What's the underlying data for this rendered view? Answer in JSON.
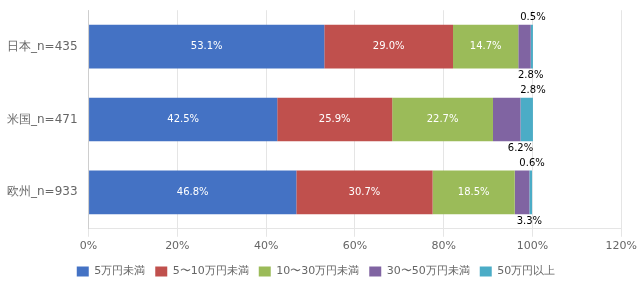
{
  "chart_data": {
    "type": "bar",
    "orientation": "horizontal",
    "stacked": true,
    "categories": [
      "日本_n=435",
      "米国_n=471",
      "欧州_n=933"
    ],
    "series": [
      {
        "name": "5万円未満",
        "color": "#4472C4",
        "values": [
          53.1,
          42.5,
          46.8
        ],
        "value_labels": [
          "53.1%",
          "42.5%",
          "46.8%"
        ]
      },
      {
        "name": "5〜10万円未満",
        "color": "#C0504D",
        "values": [
          29.0,
          25.9,
          30.7
        ],
        "value_labels": [
          "29.0%",
          "25.9%",
          "30.7%"
        ]
      },
      {
        "name": "10〜30万円未満",
        "color": "#9BBB59",
        "values": [
          14.7,
          22.7,
          18.5
        ],
        "value_labels": [
          "14.7%",
          "22.7%",
          "18.5%"
        ]
      },
      {
        "name": "30〜50万円未満",
        "color": "#8064A2",
        "values": [
          2.8,
          6.2,
          3.3
        ],
        "value_labels": [
          "2.8%",
          "6.2%",
          "3.3%"
        ]
      },
      {
        "name": "50万円以上",
        "color": "#4BACC6",
        "values": [
          0.5,
          2.8,
          0.6
        ],
        "value_labels": [
          "0.5%",
          "2.8%",
          "0.6%"
        ]
      }
    ],
    "xlim": [
      0,
      120
    ],
    "xticks": [
      {
        "value": 0,
        "label": "0%"
      },
      {
        "value": 20,
        "label": "20%"
      },
      {
        "value": 40,
        "label": "40%"
      },
      {
        "value": 60,
        "label": "60%"
      },
      {
        "value": 80,
        "label": "80%"
      },
      {
        "value": 100,
        "label": "100%"
      },
      {
        "value": 120,
        "label": "120%"
      }
    ],
    "grid": true,
    "legend": "bottom",
    "data_labels": true
  }
}
